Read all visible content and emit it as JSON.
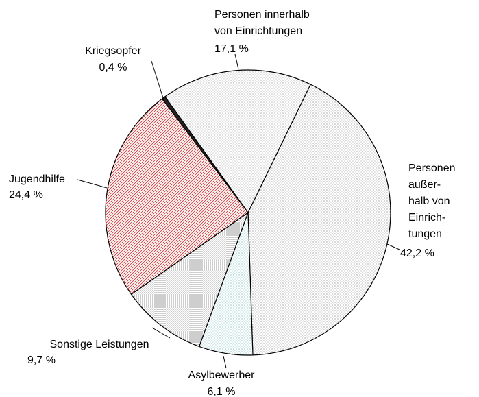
{
  "chart_data": {
    "type": "pie",
    "categories": [
      [
        "Personen",
        "außer-",
        "halb von",
        "Einrich-",
        "tungen"
      ],
      [
        "Asylbewerber"
      ],
      [
        "Sonstige Leistungen"
      ],
      [
        "Jugendhilfe"
      ],
      [
        "Kriegsopfer"
      ],
      [
        "Personen innerhalb",
        "von Einrichtungen"
      ]
    ],
    "values": [
      42.2,
      6.1,
      9.7,
      24.4,
      0.4,
      17.1
    ],
    "value_labels": [
      "42,2 %",
      "6,1 %",
      "9,7 %",
      "24,4 %",
      "0,4 %",
      "17,1 %"
    ],
    "colors": [
      "#777777",
      "#4fa8a8",
      "#555555",
      "#d03030",
      "#222222",
      "#8a8a8a"
    ]
  }
}
